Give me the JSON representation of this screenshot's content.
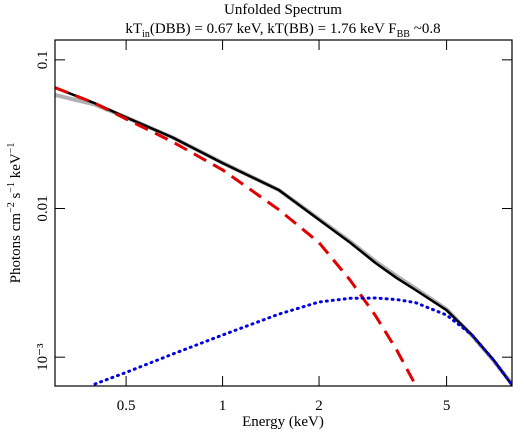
{
  "chart_data": {
    "type": "line",
    "title": "Unfolded Spectrum",
    "subtitle": [
      "kT",
      {
        "sub": "in"
      },
      "(DBB) = 0.67 keV, kT(BB) = 1.76 keV F",
      {
        "sub": "BB"
      },
      " ~0.8"
    ],
    "xlabel": "Energy (keV)",
    "ylabel": [
      "Photons cm",
      {
        "sup": "−2"
      },
      " s",
      {
        "sup": "−1"
      },
      " keV",
      {
        "sup": "−1"
      }
    ],
    "xscale": "log",
    "yscale": "log",
    "xlim": [
      0.3,
      8
    ],
    "ylim": [
      0.00064,
      0.136
    ],
    "xticks": [
      0.5,
      1,
      2,
      5
    ],
    "yticks": [
      0.1,
      0.01,
      {
        "value": 0.001,
        "label": "10⁻³"
      }
    ],
    "x": [
      0.3,
      0.4,
      0.5,
      0.7,
      1,
      1.5,
      2,
      2.5,
      3,
      3.5,
      4,
      5,
      6,
      7,
      8
    ],
    "series": [
      {
        "color": "#b0b0b0",
        "style": "solid",
        "values": [
          0.058,
          0.05,
          0.041,
          0.03,
          0.0203,
          0.0133,
          0.0085,
          0.006,
          0.0044,
          0.0035,
          0.0029,
          0.0021,
          0.0014,
          0.00095,
          0.00066
        ]
      },
      {
        "color": "#000000",
        "style": "solid",
        "values": [
          0.065,
          0.051,
          0.041,
          0.03,
          0.0202,
          0.0133,
          0.0084,
          0.0059,
          0.0043,
          0.0034,
          0.00283,
          0.00207,
          0.00141,
          0.00096,
          0.00065
        ]
      },
      {
        "color": "#e00000",
        "style": "dashed",
        "values": [
          0.065,
          0.051,
          0.04,
          0.028,
          0.0182,
          0.0098,
          0.0059,
          0.0033,
          0.0019,
          0.00111,
          0.00065,
          null,
          null,
          null,
          null
        ]
      },
      {
        "color": "#0000e0",
        "style": "dotted",
        "values": [
          null,
          0.00066,
          0.00079,
          0.00105,
          0.00141,
          0.00195,
          0.00235,
          0.00249,
          0.0025,
          0.00244,
          0.00233,
          0.00192,
          0.00141,
          0.00096,
          0.00065
        ]
      }
    ]
  }
}
